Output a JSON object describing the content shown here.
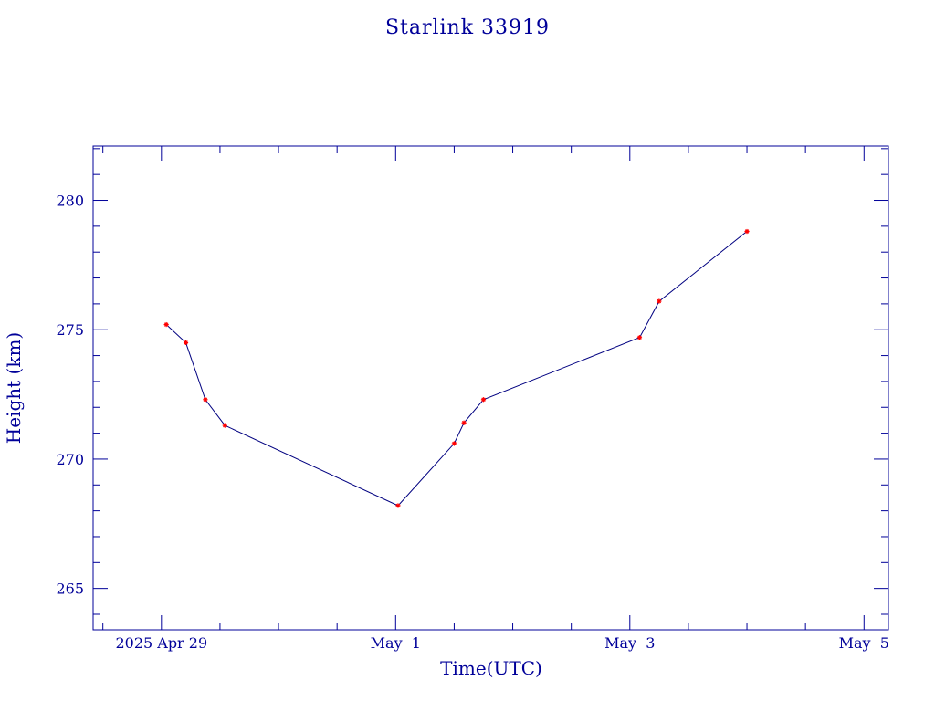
{
  "colors": {
    "axis": "#000099",
    "line": "#000080",
    "marker": "#ff0000",
    "background": "#ffffff"
  },
  "chart_data": {
    "type": "line",
    "title": "Starlink 33919",
    "xlabel": "Time(UTC)",
    "ylabel": "Height (km)",
    "x_unit": "days",
    "x_ticks": [
      {
        "value": "2025-04-29T00:00",
        "label": "2025 Apr 29"
      },
      {
        "value": "2025-05-01T00:00",
        "label": "May  1"
      },
      {
        "value": "2025-05-03T00:00",
        "label": "May  3"
      },
      {
        "value": "2025-05-05T00:00",
        "label": "May  5"
      }
    ],
    "y_ticks": [
      265,
      270,
      275,
      280
    ],
    "xlim": [
      "2025-04-28T10:00",
      "2025-05-05T05:00"
    ],
    "ylim": [
      263.4,
      282.1
    ],
    "grid": false,
    "series": [
      {
        "x": [
          "2025-04-29T01:00",
          "2025-04-29T05:00",
          "2025-04-29T09:00",
          "2025-04-29T13:00",
          "2025-05-01T00:30",
          "2025-05-01T12:00",
          "2025-05-01T14:00",
          "2025-05-01T18:00",
          "2025-05-03T02:00",
          "2025-05-03T06:00",
          "2025-05-04T00:00"
        ],
        "y": [
          275.2,
          274.5,
          272.3,
          271.3,
          268.2,
          270.6,
          271.4,
          272.3,
          274.7,
          276.1,
          278.8
        ]
      }
    ]
  }
}
